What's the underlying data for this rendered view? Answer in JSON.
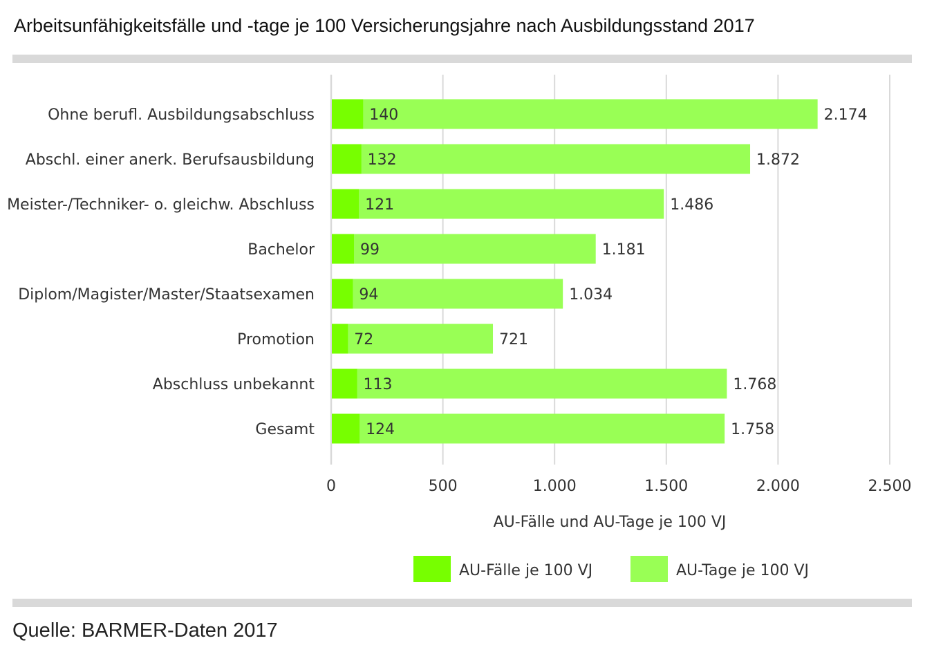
{
  "title": "Arbeitsunfähigkeitsfälle und -tage je 100 Versicherungsjahre nach Ausbildungsstand 2017",
  "source": "Quelle: BARMER-Daten 2017",
  "colors": {
    "faelle": "#77ff00",
    "tage": "#99ff55",
    "grid": "#d9d9d9"
  },
  "chart_data": {
    "type": "bar",
    "orientation": "horizontal",
    "stacked": "overlay",
    "title": "Arbeitsunfähigkeitsfälle und -tage je 100 Versicherungsjahre nach Ausbildungsstand 2017",
    "xlabel": "AU-Fälle und AU-Tage je 100 VJ",
    "ylabel": "",
    "xlim": [
      0,
      2500
    ],
    "xticks": [
      0,
      500,
      1000,
      1500,
      2000,
      2500
    ],
    "xtick_labels": [
      "0",
      "500",
      "1.000",
      "1.500",
      "2.000",
      "2.500"
    ],
    "grid": true,
    "legend_position": "bottom",
    "categories": [
      "Ohne berufl. Ausbildungsabschluss",
      "Abschl. einer anerk. Berufsausbildung",
      "Meister-/Techniker- o. gleichw. Abschluss",
      "Bachelor",
      "Diplom/Magister/Master/Staatsexamen",
      "Promotion",
      "Abschluss unbekannt",
      "Gesamt"
    ],
    "series": [
      {
        "name": "AU-Fälle je 100 VJ",
        "values": [
          140,
          132,
          121,
          99,
          94,
          72,
          113,
          124
        ],
        "labels": [
          "140",
          "132",
          "121",
          "99",
          "94",
          "72",
          "113",
          "124"
        ]
      },
      {
        "name": "AU-Tage je 100 VJ",
        "values": [
          2174,
          1872,
          1486,
          1181,
          1034,
          721,
          1768,
          1758
        ],
        "labels": [
          "2.174",
          "1.872",
          "1.486",
          "1.181",
          "1.034",
          "721",
          "1.768",
          "1.758"
        ]
      }
    ]
  }
}
